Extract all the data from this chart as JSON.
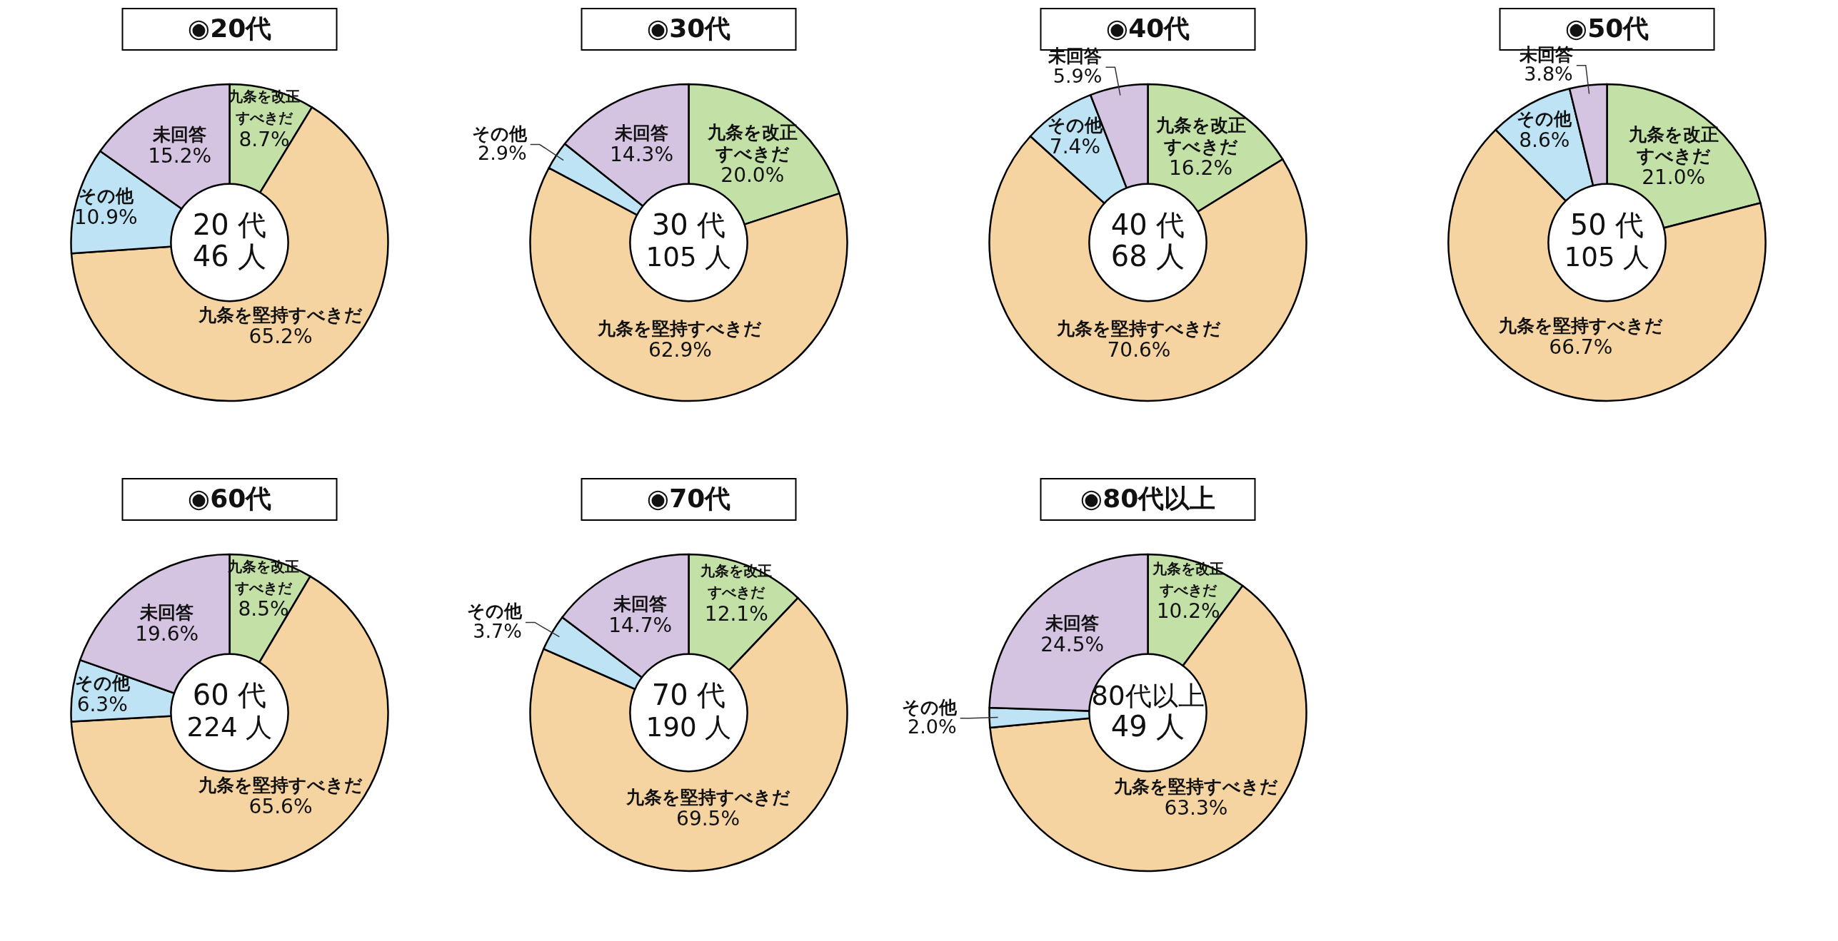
{
  "chart_data": [
    {
      "type": "donut",
      "title": "◉20代",
      "annotations": [
        "20 代",
        "46 人"
      ],
      "categories": [
        "九条を改正すべきだ",
        "九条を堅持すべきだ",
        "その他",
        "未回答"
      ],
      "values": [
        8.7,
        65.2,
        10.9,
        15.2
      ],
      "value_labels": [
        "8.7%",
        "65.2%",
        "10.9%",
        "15.2%"
      ],
      "colors": [
        "#c3e0a6",
        "#f5d4a2",
        "#bde3f5",
        "#d5c4e1"
      ]
    },
    {
      "type": "donut",
      "title": "◉30代",
      "annotations": [
        "30 代",
        "105 人"
      ],
      "categories": [
        "九条を改正すべきだ",
        "九条を堅持すべきだ",
        "その他",
        "未回答"
      ],
      "values": [
        20.0,
        62.9,
        2.9,
        14.3
      ],
      "value_labels": [
        "20.0%",
        "62.9%",
        "2.9%",
        "14.3%"
      ],
      "colors": [
        "#c3e0a6",
        "#f5d4a2",
        "#bde3f5",
        "#d5c4e1"
      ]
    },
    {
      "type": "donut",
      "title": "◉40代",
      "annotations": [
        "40 代",
        "68 人"
      ],
      "categories": [
        "九条を改正すべきだ",
        "九条を堅持すべきだ",
        "その他",
        "未回答"
      ],
      "values": [
        16.2,
        70.6,
        7.4,
        5.9
      ],
      "value_labels": [
        "16.2%",
        "70.6%",
        "7.4%",
        "5.9%"
      ],
      "colors": [
        "#c3e0a6",
        "#f5d4a2",
        "#bde3f5",
        "#d5c4e1"
      ]
    },
    {
      "type": "donut",
      "title": "◉50代",
      "annotations": [
        "50 代",
        "105 人"
      ],
      "categories": [
        "九条を改正すべきだ",
        "九条を堅持すべきだ",
        "その他",
        "未回答"
      ],
      "values": [
        21.0,
        66.7,
        8.6,
        3.8
      ],
      "value_labels": [
        "21.0%",
        "66.7%",
        "8.6%",
        "3.8%"
      ],
      "colors": [
        "#c3e0a6",
        "#f5d4a2",
        "#bde3f5",
        "#d5c4e1"
      ]
    },
    {
      "type": "donut",
      "title": "◉60代",
      "annotations": [
        "60 代",
        "224 人"
      ],
      "categories": [
        "九条を改正すべきだ",
        "九条を堅持すべきだ",
        "その他",
        "未回答"
      ],
      "values": [
        8.5,
        65.6,
        6.3,
        19.6
      ],
      "value_labels": [
        "8.5%",
        "65.6%",
        "6.3%",
        "19.6%"
      ],
      "colors": [
        "#c3e0a6",
        "#f5d4a2",
        "#bde3f5",
        "#d5c4e1"
      ]
    },
    {
      "type": "donut",
      "title": "◉70代",
      "annotations": [
        "70 代",
        "190 人"
      ],
      "categories": [
        "九条を改正すべきだ",
        "九条を堅持すべきだ",
        "その他",
        "未回答"
      ],
      "values": [
        12.1,
        69.5,
        3.7,
        14.7
      ],
      "value_labels": [
        "12.1%",
        "69.5%",
        "3.7%",
        "14.7%"
      ],
      "colors": [
        "#c3e0a6",
        "#f5d4a2",
        "#bde3f5",
        "#d5c4e1"
      ]
    },
    {
      "type": "donut",
      "title": "◉80代以上",
      "annotations": [
        "80代以上",
        "49 人"
      ],
      "categories": [
        "九条を改正すべきだ",
        "九条を堅持すべきだ",
        "その他",
        "未回答"
      ],
      "values": [
        10.2,
        63.3,
        2.0,
        24.5
      ],
      "value_labels": [
        "10.2%",
        "63.3%",
        "2.0%",
        "24.5%"
      ],
      "colors": [
        "#c3e0a6",
        "#f5d4a2",
        "#bde3f5",
        "#d5c4e1"
      ]
    }
  ]
}
